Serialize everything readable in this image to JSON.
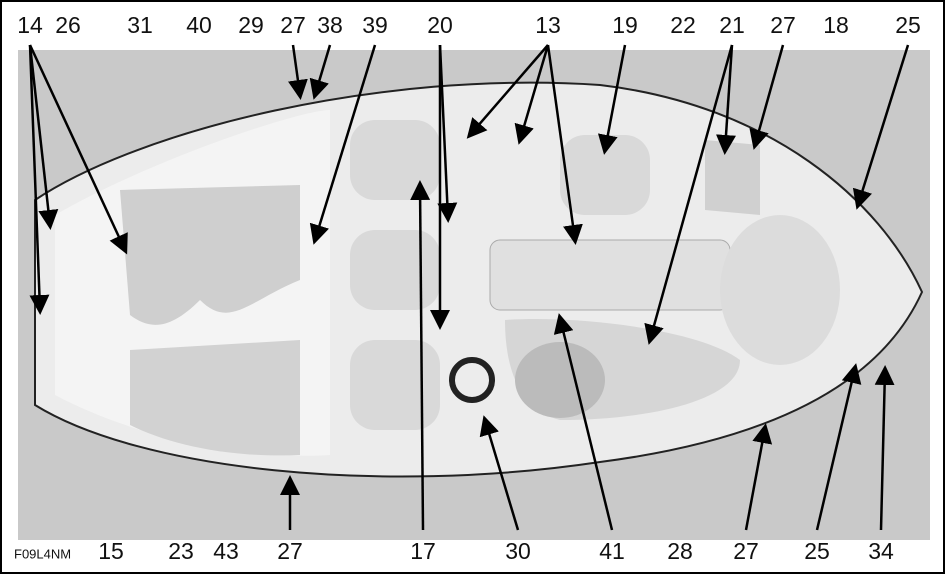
{
  "top_labels": [
    "14",
    "26",
    "31",
    "40",
    "29",
    "27",
    "38",
    "39",
    "20",
    "13",
    "19",
    "22",
    "21",
    "27",
    "18",
    "25"
  ],
  "bottom_labels": [
    "15",
    "23",
    "43",
    "27",
    "17",
    "30",
    "41",
    "28",
    "27",
    "25",
    "34"
  ],
  "figure_code": "F09L4NM"
}
